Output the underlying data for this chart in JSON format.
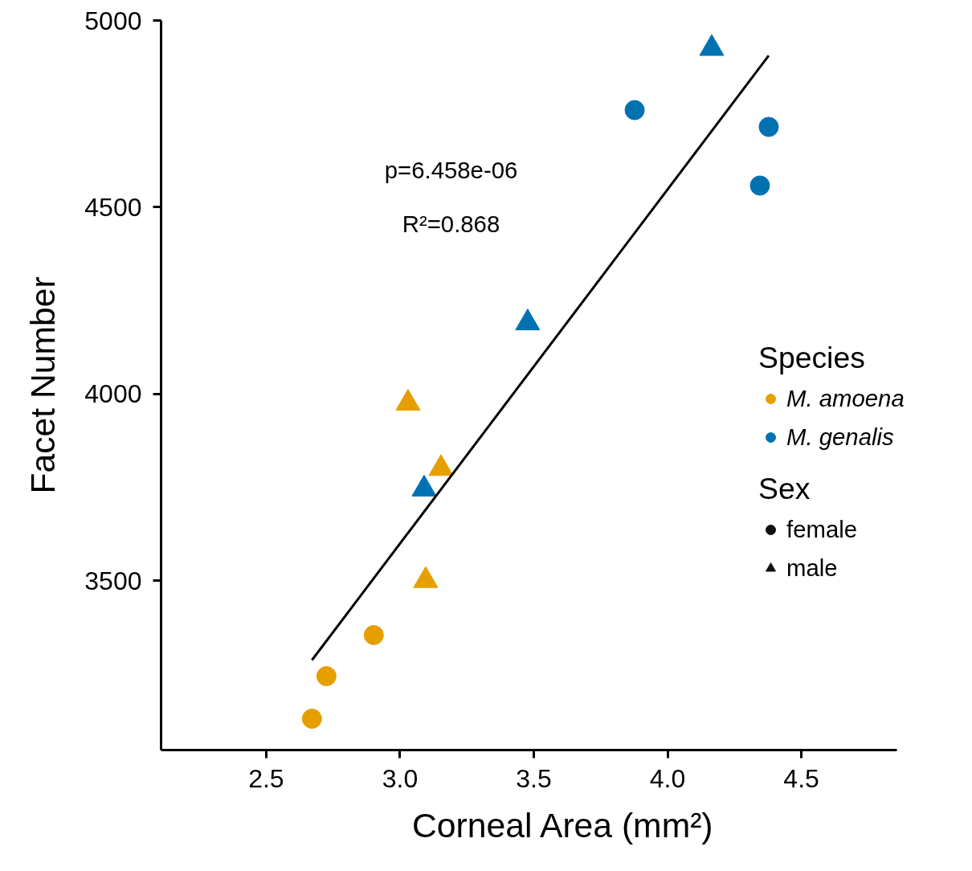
{
  "chart_data": {
    "type": "scatter",
    "xlabel": "Corneal Area (mm²)",
    "ylabel": "Facet Number",
    "xlim": [
      2.107,
      4.857
    ],
    "ylim": [
      3046,
      5000
    ],
    "xticks": [
      {
        "value": 2.5,
        "label": "2.5"
      },
      {
        "value": 3.0,
        "label": "3.0"
      },
      {
        "value": 3.5,
        "label": "3.5"
      },
      {
        "value": 4.0,
        "label": "4.0"
      },
      {
        "value": 4.5,
        "label": "4.5"
      }
    ],
    "yticks": [
      3500,
      4000,
      4500,
      5000
    ],
    "grid": false,
    "legend": "right",
    "legend_title": "Species",
    "annotations": [
      "p=6.458e-06",
      "R²=0.868",
      "Sex"
    ],
    "series": [
      {
        "name": "M. amoena",
        "color": "#e69f00",
        "marker": "circle",
        "x": [
          2.671,
          2.725,
          2.902
        ],
        "values": [
          3130,
          3244,
          3354
        ]
      },
      {
        "color": "#e69f00",
        "marker": "triangle",
        "x": [
          3.03,
          3.153,
          3.096
        ],
        "values": [
          3975,
          3800,
          3500
        ]
      },
      {
        "name": "M. genalis",
        "color": "#0072b2",
        "marker": "circle",
        "x": [
          3.877,
          4.378,
          4.345
        ],
        "values": [
          4760,
          4715,
          4558
        ]
      },
      {
        "color": "#0072b2",
        "marker": "triangle",
        "x": [
          4.165,
          3.477,
          3.09
        ],
        "values": [
          4925,
          4190,
          3745
        ]
      },
      {
        "type": "line",
        "color": "#000000",
        "marker": "none",
        "x": [
          2.671,
          4.378
        ],
        "values": [
          3287,
          4906
        ]
      },
      {
        "name": "female",
        "color": "#111111",
        "marker": "circle"
      },
      {
        "name": "male",
        "color": "#111111",
        "marker": "triangle"
      }
    ]
  }
}
